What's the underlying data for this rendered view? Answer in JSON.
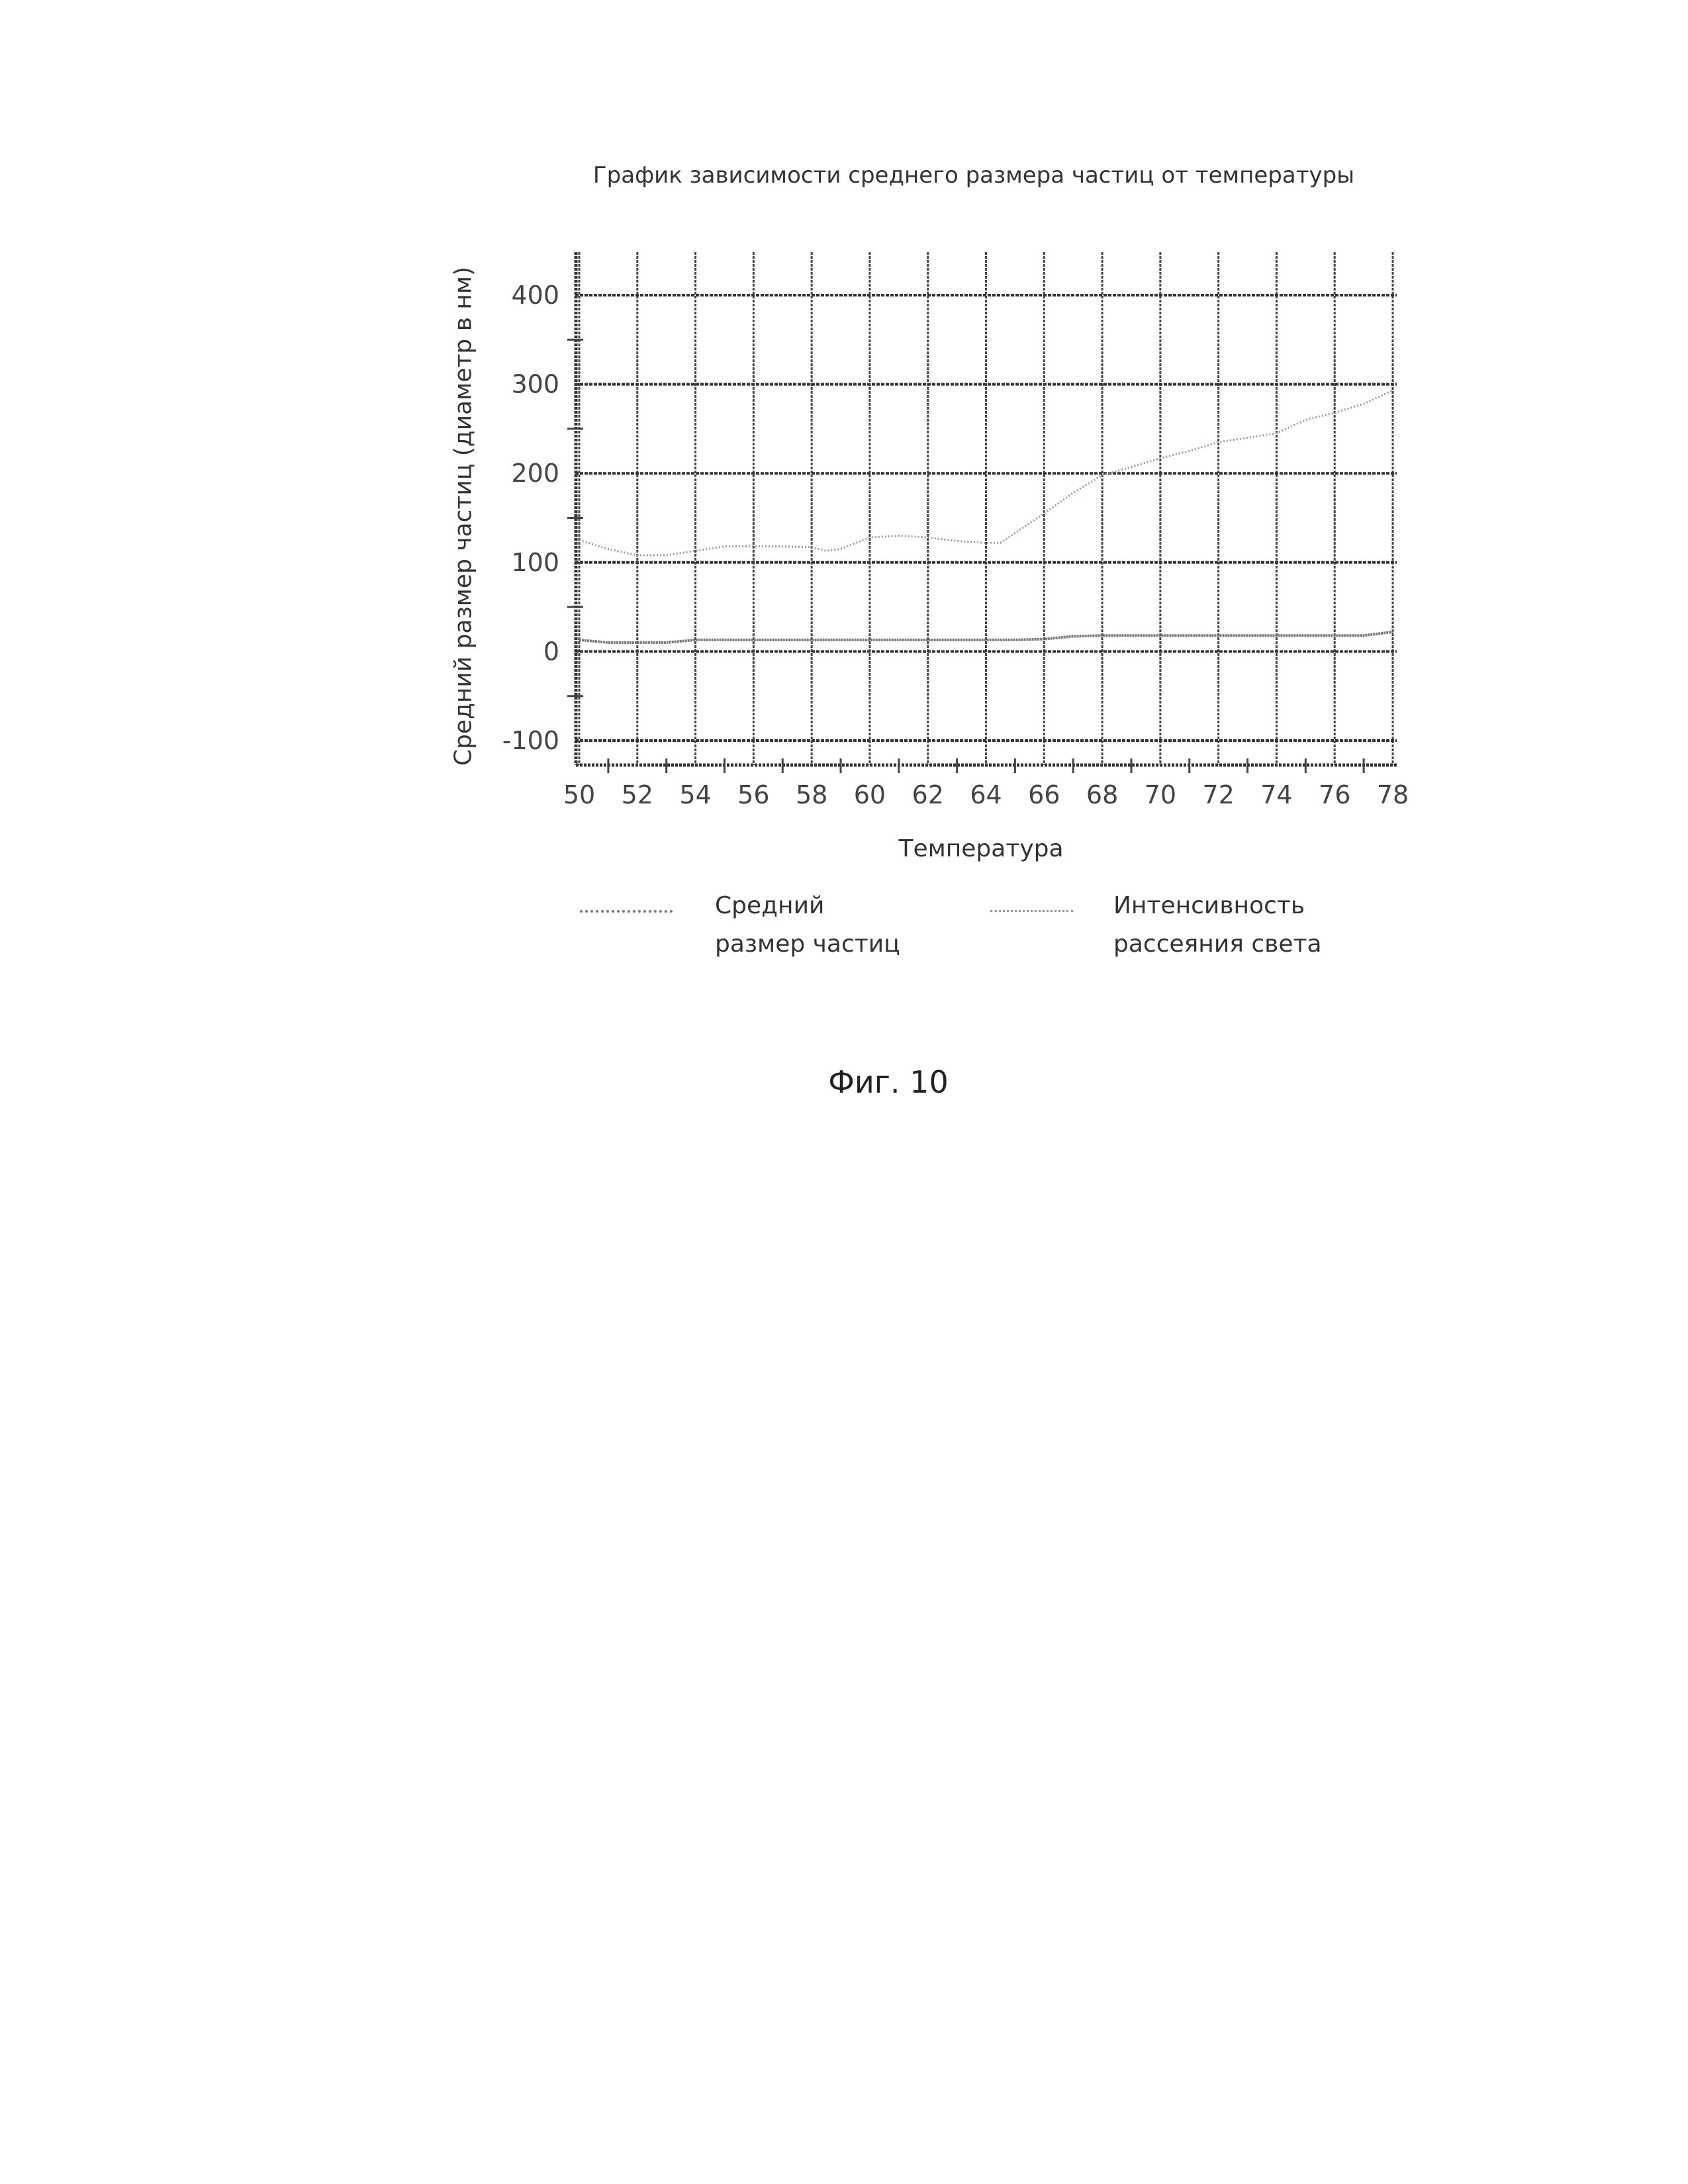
{
  "chart_data": {
    "type": "line",
    "title": "График зависимости среднего размера частиц от температуры",
    "xlabel": "Температура",
    "ylabel": "Средний размер частиц (диаметр в нм)",
    "xlim": [
      50,
      78
    ],
    "ylim": [
      -125,
      450
    ],
    "x_ticks": [
      "50",
      "52",
      "54",
      "56",
      "58",
      "60",
      "62",
      "64",
      "66",
      "68",
      "70",
      "72",
      "74",
      "76",
      "78"
    ],
    "y_ticks": [
      "400",
      "300",
      "200",
      "100",
      "0",
      "-100"
    ],
    "grid": true,
    "legend_position": "bottom",
    "series": [
      {
        "name": "Средний размер частиц",
        "color": "#777777",
        "x": [
          50,
          51,
          52,
          53,
          54,
          55,
          56,
          58,
          60,
          62,
          64,
          65,
          66,
          67,
          68,
          70,
          72,
          74,
          76,
          77,
          78
        ],
        "y": [
          13,
          10,
          10,
          10,
          13,
          13,
          13,
          13,
          13,
          13,
          13,
          13,
          14,
          17,
          18,
          18,
          18,
          18,
          18,
          18,
          22
        ]
      },
      {
        "name": "Интенсивность рассеяния света",
        "color": "#999999",
        "x": [
          50,
          51,
          52,
          53,
          54,
          55,
          56,
          57,
          58,
          58.5,
          59,
          60,
          61,
          62,
          63,
          64,
          64.5,
          66,
          67,
          68,
          69,
          70,
          71,
          72,
          73,
          74,
          75,
          76,
          77,
          78
        ],
        "y": [
          125,
          115,
          108,
          108,
          113,
          118,
          118,
          118,
          117,
          113,
          115,
          128,
          130,
          128,
          124,
          122,
          122,
          155,
          178,
          198,
          207,
          217,
          225,
          235,
          240,
          245,
          260,
          268,
          278,
          293
        ]
      }
    ]
  },
  "legend": {
    "item1_line1": "Средний",
    "item1_line2": "размер частиц",
    "item2_line1": "Интенсивность",
    "item2_line2": "рассеяния света"
  },
  "figure_label": "Фиг. 10"
}
